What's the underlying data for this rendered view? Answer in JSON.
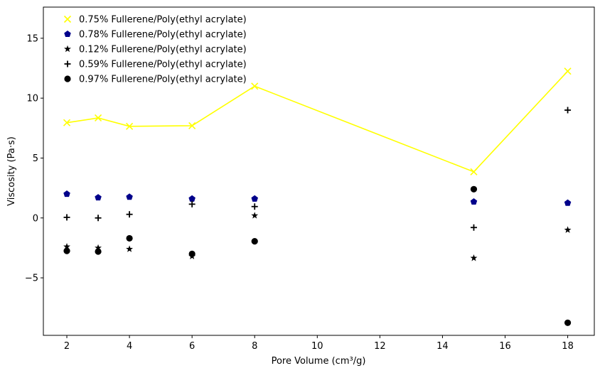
{
  "chart_data": {
    "type": "scatter",
    "xlabel": "Pore Volume (cm³/g)",
    "ylabel": "Viscosity (Pa·s)",
    "xlim": [
      1.25,
      18.85
    ],
    "ylim": [
      -9.8,
      17.6
    ],
    "xticks": [
      2,
      4,
      6,
      8,
      10,
      12,
      14,
      16,
      18
    ],
    "yticks": [
      -5,
      0,
      5,
      10,
      15
    ],
    "ytick_labels": [
      "−5",
      "0",
      "5",
      "10",
      "15"
    ],
    "grid": false,
    "legend_position": "top-left",
    "series": [
      {
        "name": "0.75% Fullerene/Poly(ethyl acrylate)",
        "marker": "x",
        "color": "#ffff00",
        "line": true,
        "x": [
          2,
          3,
          4,
          6,
          8,
          15,
          18
        ],
        "y": [
          7.95,
          8.35,
          7.65,
          7.7,
          11.0,
          3.85,
          12.25
        ]
      },
      {
        "name": "0.78% Fullerene/Poly(ethyl acrylate)",
        "marker": "pentagon",
        "color": "#00008b",
        "line": false,
        "x": [
          2,
          3,
          4,
          6,
          8,
          15,
          18
        ],
        "y": [
          2.0,
          1.7,
          1.75,
          1.6,
          1.6,
          1.35,
          1.25
        ]
      },
      {
        "name": "0.12% Fullerene/Poly(ethyl acrylate)",
        "marker": "star",
        "color": "#000000",
        "line": false,
        "x": [
          2,
          3,
          4,
          6,
          8,
          15,
          18
        ],
        "y": [
          -2.4,
          -2.5,
          -2.6,
          -3.2,
          0.2,
          -3.35,
          -1.0
        ]
      },
      {
        "name": "0.59% Fullerene/Poly(ethyl acrylate)",
        "marker": "plus",
        "color": "#000000",
        "line": false,
        "x": [
          2,
          3,
          4,
          6,
          8,
          15,
          18
        ],
        "y": [
          0.05,
          0.0,
          0.3,
          1.15,
          0.95,
          -0.8,
          9.0
        ]
      },
      {
        "name": "0.97% Fullerene/Poly(ethyl acrylate)",
        "marker": "circle",
        "color": "#000000",
        "line": false,
        "x": [
          2,
          3,
          4,
          6,
          8,
          15,
          18
        ],
        "y": [
          -2.75,
          -2.8,
          -1.7,
          -3.0,
          -1.95,
          2.4,
          -8.75
        ]
      }
    ]
  }
}
